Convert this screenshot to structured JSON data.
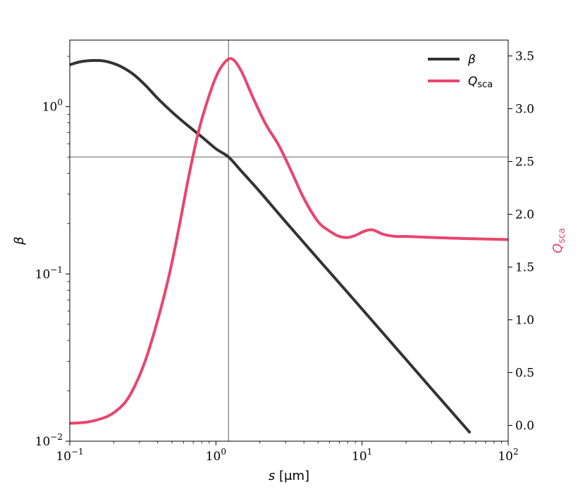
{
  "chart_data": {
    "type": "line",
    "xscale": "log",
    "xlim": [
      0.1,
      100
    ],
    "xlabel": "s [μm]",
    "x_ticks": [
      {
        "value": 0.1,
        "base": "10",
        "exp": "−1"
      },
      {
        "value": 1,
        "base": "10",
        "exp": "0"
      },
      {
        "value": 10,
        "base": "10",
        "exp": "1"
      },
      {
        "value": 100,
        "base": "10",
        "exp": "2"
      }
    ],
    "left_axis": {
      "label": "β",
      "scale": "log",
      "ylim": [
        0.01,
        2.5
      ],
      "ticks": [
        {
          "value": 0.01,
          "base": "10",
          "exp": "−2"
        },
        {
          "value": 0.1,
          "base": "10",
          "exp": "−1"
        },
        {
          "value": 1,
          "base": "10",
          "exp": "0"
        }
      ]
    },
    "right_axis": {
      "label": "Q",
      "label_sub": "sca",
      "scale": "linear",
      "ylim": [
        -0.15,
        3.65
      ],
      "ticks": [
        "0.0",
        "0.5",
        "1.0",
        "1.5",
        "2.0",
        "2.5",
        "3.0",
        "3.5"
      ],
      "color": "#e8456f"
    },
    "reference_lines": {
      "x": 1.22,
      "beta": 0.5
    },
    "legend_placement": "top-right",
    "series": [
      {
        "name": "β",
        "axis": "left",
        "color": "#333333",
        "x": [
          0.1,
          0.12,
          0.15,
          0.18,
          0.22,
          0.27,
          0.33,
          0.4,
          0.5,
          0.6,
          0.8,
          1.0,
          1.22,
          1.5,
          2,
          3,
          5,
          10,
          20,
          30,
          55
        ],
        "y": [
          1.78,
          1.86,
          1.89,
          1.86,
          1.75,
          1.57,
          1.34,
          1.12,
          0.93,
          0.81,
          0.66,
          0.56,
          0.5,
          0.41,
          0.31,
          0.205,
          0.123,
          0.0617,
          0.0308,
          0.0205,
          0.0112
        ]
      },
      {
        "name": "Q",
        "name_sub": "sca",
        "axis": "right",
        "color": "#e8456f",
        "x": [
          0.1,
          0.13,
          0.17,
          0.2,
          0.24,
          0.28,
          0.33,
          0.4,
          0.48,
          0.56,
          0.65,
          0.75,
          0.85,
          1.0,
          1.15,
          1.3,
          1.5,
          1.8,
          2.2,
          2.7,
          3.3,
          4,
          5,
          6,
          7,
          8,
          9,
          10,
          11,
          12,
          14,
          17,
          20,
          30,
          50,
          100
        ],
        "y": [
          0.02,
          0.03,
          0.07,
          0.12,
          0.22,
          0.38,
          0.62,
          1.0,
          1.43,
          1.88,
          2.35,
          2.75,
          3.02,
          3.3,
          3.44,
          3.47,
          3.35,
          3.1,
          2.85,
          2.65,
          2.4,
          2.15,
          1.93,
          1.84,
          1.79,
          1.78,
          1.8,
          1.83,
          1.85,
          1.85,
          1.81,
          1.79,
          1.79,
          1.78,
          1.77,
          1.76
        ]
      }
    ]
  }
}
